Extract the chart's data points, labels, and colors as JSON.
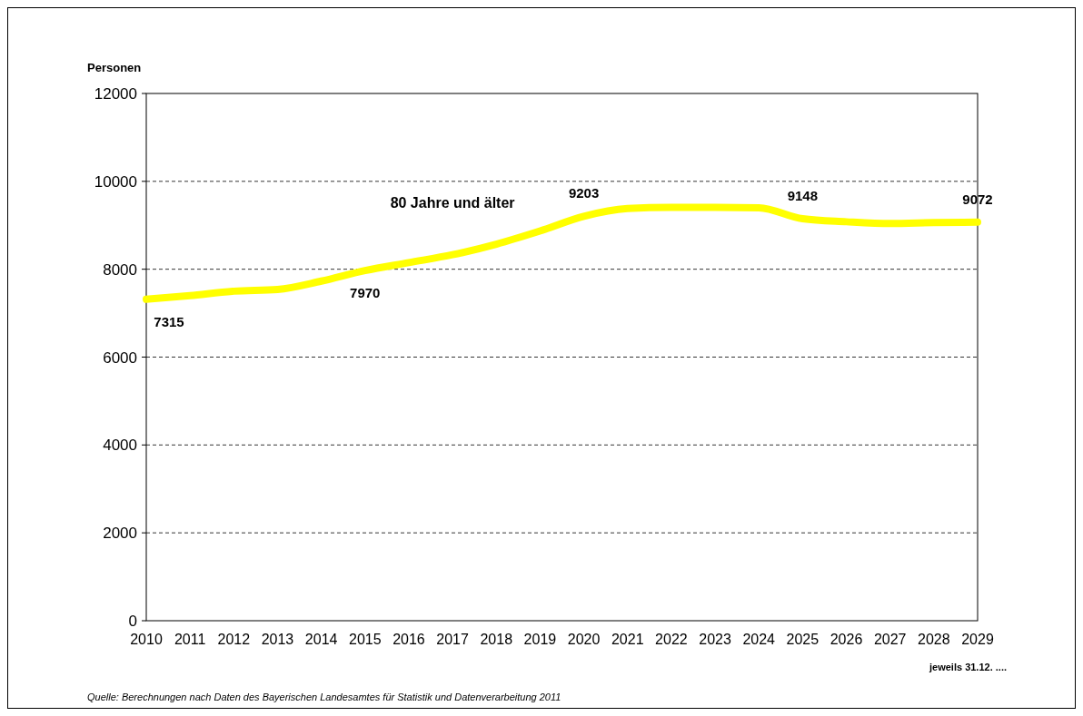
{
  "chart_data": {
    "type": "line",
    "ylabel": "Personen",
    "xlabel": "jeweils 31.12. ....",
    "categories": [
      "2010",
      "2011",
      "2012",
      "2013",
      "2014",
      "2015",
      "2016",
      "2017",
      "2018",
      "2019",
      "2020",
      "2021",
      "2022",
      "2023",
      "2024",
      "2025",
      "2026",
      "2027",
      "2028",
      "2029"
    ],
    "series": [
      {
        "name": "80 Jahre und älter",
        "color": "#ffff00",
        "values": [
          7315,
          7400,
          7500,
          7540,
          7730,
          7970,
          8150,
          8330,
          8570,
          8870,
          9203,
          9380,
          9410,
          9410,
          9400,
          9148,
          9080,
          9040,
          9060,
          9072
        ],
        "value_labels": [
          "7315",
          null,
          null,
          null,
          null,
          "7970",
          null,
          null,
          null,
          null,
          "9203",
          null,
          null,
          null,
          null,
          "9148",
          null,
          null,
          null,
          "9072"
        ]
      }
    ],
    "ylim": [
      0,
      12000
    ],
    "yticks": [
      0,
      2000,
      4000,
      6000,
      8000,
      10000,
      12000
    ],
    "grid": "y",
    "line_style": "solid",
    "marker": "none",
    "annotations": [
      "Quelle: Berechnungen nach Daten des Bayerischen Landesamtes für Statistik und Datenverarbeitung 2011"
    ]
  }
}
